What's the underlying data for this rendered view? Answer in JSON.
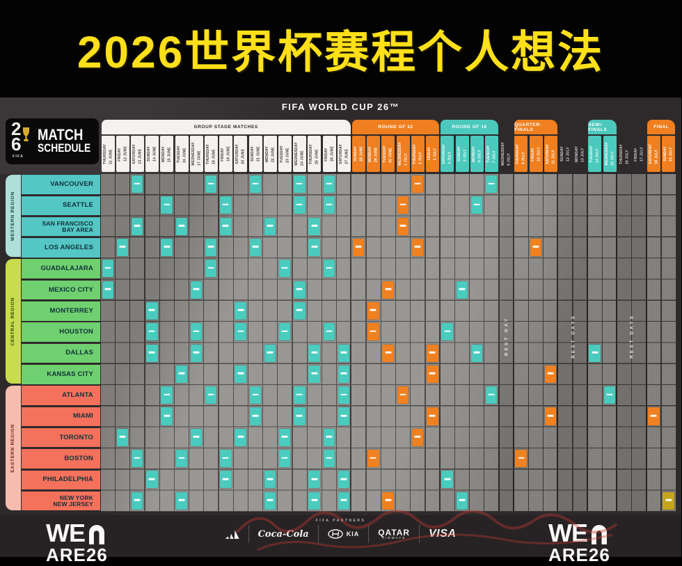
{
  "banner_title": "2026世界杯赛程个人想法",
  "header": {
    "competition": "FIFA WORLD CUP 26™",
    "logo_digit_top": "2",
    "logo_digit_bottom": "6",
    "logo_fifa": "FIFA",
    "schedule_line1": "MATCH",
    "schedule_line2": "SCHEDULE"
  },
  "colors": {
    "banner_yellow": "#FFE01A",
    "poster_bg": "#2E2A2B",
    "grid_gray": "#8D8B88",
    "teal": "#4BCBBE",
    "orange": "#F08121",
    "final_gold": "#C4A51D",
    "western_city": "#54C6C3",
    "central_city": "#6FD06F",
    "eastern_city": "#F4715C"
  },
  "chart_data": {
    "type": "table",
    "title": "FIFA World Cup 26 Match Schedule",
    "stage_groups": [
      {
        "label": "GROUP STAGE MATCHES",
        "stage": "group",
        "col_start": 0,
        "col_span": 17
      },
      {
        "label": "ROUND OF 32",
        "stage": "r32",
        "col_start": 17,
        "col_span": 6
      },
      {
        "label": "ROUND OF 16",
        "stage": "r16",
        "col_start": 23,
        "col_span": 4
      },
      {
        "label": "QUARTER-FINALS",
        "stage": "qf",
        "col_start": 28,
        "col_span": 3
      },
      {
        "label": "SEMI-FINALS",
        "stage": "sf",
        "col_start": 33,
        "col_span": 2
      },
      {
        "label": "FINAL",
        "stage": "final",
        "col_start": 37,
        "col_span": 2
      }
    ],
    "columns": [
      {
        "day": "THURSDAY",
        "date": "11 JUNE",
        "stage": "group"
      },
      {
        "day": "FRIDAY",
        "date": "12 JUNE",
        "stage": "group"
      },
      {
        "day": "SATURDAY",
        "date": "13 JUNE",
        "stage": "group"
      },
      {
        "day": "SUNDAY",
        "date": "14 JUNE",
        "stage": "group"
      },
      {
        "day": "MONDAY",
        "date": "15 JUNE",
        "stage": "group"
      },
      {
        "day": "TUESDAY",
        "date": "16 JUNE",
        "stage": "group"
      },
      {
        "day": "WEDNESDAY",
        "date": "17 JUNE",
        "stage": "group"
      },
      {
        "day": "THURSDAY",
        "date": "18 JUNE",
        "stage": "group"
      },
      {
        "day": "FRIDAY",
        "date": "19 JUNE",
        "stage": "group"
      },
      {
        "day": "SATURDAY",
        "date": "20 JUNE",
        "stage": "group"
      },
      {
        "day": "SUNDAY",
        "date": "21 JUNE",
        "stage": "group"
      },
      {
        "day": "MONDAY",
        "date": "22 JUNE",
        "stage": "group"
      },
      {
        "day": "TUESDAY",
        "date": "23 JUNE",
        "stage": "group"
      },
      {
        "day": "WEDNESDAY",
        "date": "24 JUNE",
        "stage": "group"
      },
      {
        "day": "THURSDAY",
        "date": "25 JUNE",
        "stage": "group"
      },
      {
        "day": "FRIDAY",
        "date": "26 JUNE",
        "stage": "group"
      },
      {
        "day": "SATURDAY",
        "date": "27 JUNE",
        "stage": "group"
      },
      {
        "day": "SUNDAY",
        "date": "28 JUNE",
        "stage": "r32"
      },
      {
        "day": "MONDAY",
        "date": "29 JUNE",
        "stage": "r32"
      },
      {
        "day": "TUESDAY",
        "date": "30 JUNE",
        "stage": "r32"
      },
      {
        "day": "WEDNESDAY",
        "date": "1 JULY",
        "stage": "r32"
      },
      {
        "day": "THURSDAY",
        "date": "2 JULY",
        "stage": "r32"
      },
      {
        "day": "FRIDAY",
        "date": "3 JULY",
        "stage": "r32"
      },
      {
        "day": "SATURDAY",
        "date": "4 JULY",
        "stage": "r16"
      },
      {
        "day": "SUNDAY",
        "date": "5 JULY",
        "stage": "r16"
      },
      {
        "day": "MONDAY",
        "date": "6 JULY",
        "stage": "r16"
      },
      {
        "day": "TUESDAY",
        "date": "7 JULY",
        "stage": "r16"
      },
      {
        "day": "WEDNESDAY",
        "date": "8 JULY",
        "stage": "rest"
      },
      {
        "day": "THURSDAY",
        "date": "9 JULY",
        "stage": "qf"
      },
      {
        "day": "FRIDAY",
        "date": "10 JULY",
        "stage": "qf"
      },
      {
        "day": "SATURDAY",
        "date": "11 JULY",
        "stage": "qf"
      },
      {
        "day": "SUNDAY",
        "date": "12 JULY",
        "stage": "rest"
      },
      {
        "day": "MONDAY",
        "date": "13 JULY",
        "stage": "rest"
      },
      {
        "day": "TUESDAY",
        "date": "14 JULY",
        "stage": "sf"
      },
      {
        "day": "WEDNESDAY",
        "date": "15 JULY",
        "stage": "sf"
      },
      {
        "day": "THURSDAY",
        "date": "16 JULY",
        "stage": "rest"
      },
      {
        "day": "FRIDAY",
        "date": "17 JULY",
        "stage": "rest"
      },
      {
        "day": "SATURDAY",
        "date": "18 JULY",
        "stage": "final"
      },
      {
        "day": "SUNDAY",
        "date": "19 JULY",
        "stage": "final"
      }
    ],
    "rest_labels": [
      {
        "center_col": 27.5,
        "text": "REST DAY"
      },
      {
        "center_col": 32.0,
        "text": "REST DAYS"
      },
      {
        "center_col": 36.0,
        "text": "REST DAYS"
      }
    ],
    "regions": [
      {
        "name": "WESTERN REGION",
        "tab_color": "#AEDFD8",
        "city_color": "#54C6C3",
        "text_color": "#14454A",
        "cities": [
          "VANCOUVER",
          "SEATTLE",
          "SAN FRANCISCO\nBAY AREA",
          "LOS ANGELES"
        ]
      },
      {
        "name": "CENTRAL REGION",
        "tab_color": "#C9DC4B",
        "city_color": "#6FD06F",
        "text_color": "#24430F",
        "cities": [
          "GUADALAJARA",
          "MEXICO CITY",
          "MONTERREY",
          "HOUSTON",
          "DALLAS",
          "KANSAS CITY"
        ]
      },
      {
        "name": "EASTERN REGION",
        "tab_color": "#F6BDAE",
        "city_color": "#F4715C",
        "text_color": "#6B2417",
        "cities": [
          "ATLANTA",
          "MIAMI",
          "TORONTO",
          "BOSTON",
          "PHILADELPHIA",
          "NEW YORK\nNEW JERSEY"
        ]
      }
    ],
    "matches_by_row": [
      {
        "group": [
          2,
          7,
          10,
          13,
          15
        ],
        "r32": [
          21
        ],
        "r16": [
          26
        ]
      },
      {
        "group": [
          4,
          8,
          13,
          15
        ],
        "r32": [
          20
        ],
        "r16": [
          25
        ]
      },
      {
        "group": [
          2,
          5,
          8,
          11,
          14
        ],
        "r32": [
          20
        ]
      },
      {
        "group": [
          1,
          4,
          7,
          10,
          14
        ],
        "r32": [
          17,
          21
        ],
        "qf": [
          29
        ]
      },
      {
        "group": [
          0,
          7,
          12,
          15
        ]
      },
      {
        "group": [
          0,
          6,
          13
        ],
        "r32": [
          19
        ],
        "r16": [
          24
        ]
      },
      {
        "group": [
          3,
          9,
          13
        ],
        "r32": [
          18
        ]
      },
      {
        "group": [
          3,
          6,
          9,
          12,
          15
        ],
        "r32": [
          18
        ],
        "r16": [
          23
        ]
      },
      {
        "group": [
          3,
          6,
          11,
          14,
          16
        ],
        "r32": [
          19,
          22
        ],
        "r16": [
          25
        ],
        "sf": [
          33
        ]
      },
      {
        "group": [
          5,
          9,
          14,
          16
        ],
        "r32": [
          22
        ],
        "qf": [
          30
        ]
      },
      {
        "group": [
          4,
          7,
          10,
          13,
          16
        ],
        "r32": [
          20
        ],
        "r16": [
          26
        ],
        "sf": [
          34
        ]
      },
      {
        "group": [
          4,
          10,
          13,
          16
        ],
        "r32": [
          22
        ],
        "qf": [
          30
        ],
        "bronze": [
          37
        ]
      },
      {
        "group": [
          1,
          6,
          9,
          12,
          15
        ],
        "r32": [
          21
        ]
      },
      {
        "group": [
          2,
          5,
          8,
          12,
          15
        ],
        "r32": [
          18
        ],
        "qf": [
          28
        ]
      },
      {
        "group": [
          3,
          8,
          11,
          14,
          16
        ],
        "r16": [
          23
        ]
      },
      {
        "group": [
          2,
          5,
          11,
          14,
          16
        ],
        "r32": [
          19
        ],
        "r16": [
          24
        ],
        "final": [
          38
        ]
      }
    ]
  },
  "footer": {
    "partners_label": "FIFA PARTNERS",
    "we_text": "WE",
    "we_sub": "ARE26",
    "sponsors": {
      "adidas": "adidas",
      "coca_cola": "Coca-Cola",
      "hyundai_kia": "KIA",
      "qatar_line1": "QATAR",
      "qatar_line2": "AIRWAYS",
      "visa": "VISA"
    }
  }
}
